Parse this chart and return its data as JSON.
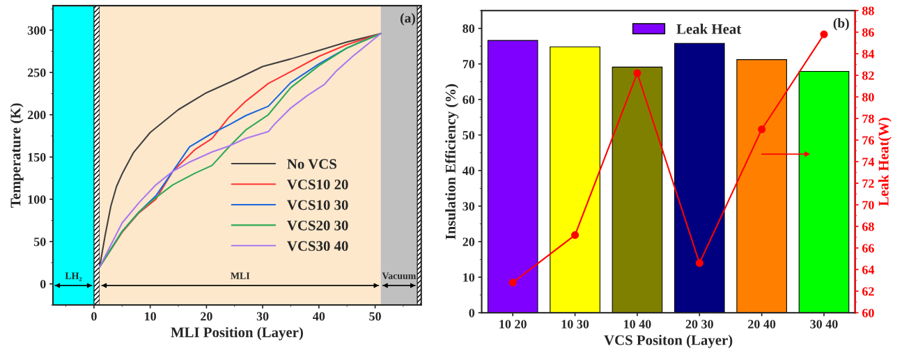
{
  "chart_data": [
    {
      "type": "line",
      "xlabel": "MLI Position (Layer)",
      "ylabel": "Temperature (K)",
      "xlim": [
        -7.3,
        58.2
      ],
      "ylim": [
        -25,
        329
      ],
      "xticks": [
        0,
        10,
        20,
        30,
        40,
        50
      ],
      "yticks": [
        0,
        50,
        100,
        150,
        200,
        250,
        300
      ],
      "legend": "right",
      "grid": false,
      "bands": [
        {
          "axis": "x",
          "from": -7.3,
          "to": 0,
          "label": "LH₂",
          "color": "#00ffff"
        },
        {
          "axis": "x",
          "from": 0,
          "to": 1,
          "color": "#000000"
        },
        {
          "axis": "x",
          "from": 1,
          "to": 51,
          "label": "MLI",
          "color": "#fde8cc"
        },
        {
          "axis": "x",
          "from": 51,
          "to": 57.5,
          "label": "Vacuum",
          "color": "#c0c0c0"
        },
        {
          "axis": "x",
          "from": 57.5,
          "to": 58.2,
          "color": "#000000"
        }
      ],
      "annotations": [
        "(a)"
      ],
      "series": [
        {
          "name": "No VCS",
          "color": "#404040",
          "x": [
            1,
            2,
            3,
            4,
            5,
            7,
            10,
            15,
            20,
            25,
            30,
            35,
            40,
            45,
            51
          ],
          "values": [
            20,
            58,
            92,
            115,
            130,
            155,
            179,
            206,
            226,
            241,
            257,
            266,
            276,
            286,
            296
          ]
        },
        {
          "name": "VCS10 20",
          "color": "#ff3333",
          "x": [
            1,
            5,
            8,
            11,
            14,
            18,
            21,
            24,
            27,
            31,
            35,
            40,
            45,
            51
          ],
          "values": [
            20,
            61,
            84,
            100,
            133,
            159,
            172,
            197,
            216,
            237,
            251,
            269,
            283,
            296
          ]
        },
        {
          "name": "VCS10 30",
          "color": "#1a66dd",
          "x": [
            1,
            5,
            8,
            11,
            14,
            17,
            21,
            24,
            27,
            31,
            35,
            40,
            45,
            51
          ],
          "values": [
            20,
            62,
            85,
            104,
            133,
            162,
            178,
            188,
            199,
            210,
            238,
            260,
            279,
            296
          ]
        },
        {
          "name": "VCS20 30",
          "color": "#2eaa55",
          "x": [
            1,
            5,
            8,
            11,
            14,
            18,
            21,
            24,
            27,
            31,
            35,
            40,
            45,
            51
          ],
          "values": [
            20,
            62,
            85,
            102,
            117,
            131,
            140,
            162,
            182,
            200,
            232,
            258,
            279,
            296
          ]
        },
        {
          "name": "VCS30 40",
          "color": "#aa77ee",
          "x": [
            1,
            5,
            8,
            11,
            14,
            17,
            21,
            24,
            27,
            31,
            32,
            35,
            38,
            41,
            43,
            46,
            51
          ],
          "values": [
            20,
            72,
            96,
            117,
            133,
            144,
            156,
            163,
            172,
            180,
            188,
            208,
            223,
            236,
            251,
            269,
            296
          ]
        }
      ]
    },
    {
      "type": "bar",
      "xlabel": "VCS Positon (Layer)",
      "ylabel": "Insulation Efficiency (%)",
      "y2label": "Leak Heat(W)",
      "categories": [
        "10 20",
        "10 30",
        "10 40",
        "20 30",
        "20 40",
        "30 40"
      ],
      "ylim": [
        0,
        85
      ],
      "yticks": [
        0,
        10,
        20,
        30,
        40,
        50,
        60,
        70,
        80
      ],
      "y2lim": [
        60,
        88
      ],
      "y2ticks": [
        60,
        62,
        64,
        66,
        68,
        70,
        72,
        74,
        76,
        78,
        80,
        82,
        84,
        86,
        88
      ],
      "legend": "top",
      "grid": false,
      "annotations": [
        "(b)"
      ],
      "series": [
        {
          "name": "Leak Heat",
          "type": "bar",
          "colors": [
            "#8000ff",
            "#ffff00",
            "#808000",
            "#000080",
            "#ff8000",
            "#00ff00"
          ],
          "values": [
            76.6,
            74.8,
            69.1,
            75.8,
            71.2,
            67.9
          ]
        },
        {
          "type": "line",
          "axis": "y2",
          "color": "#ff0000",
          "marker": "circle",
          "values": [
            62.8,
            67.2,
            82.2,
            64.6,
            77.0,
            85.8
          ]
        }
      ]
    }
  ]
}
